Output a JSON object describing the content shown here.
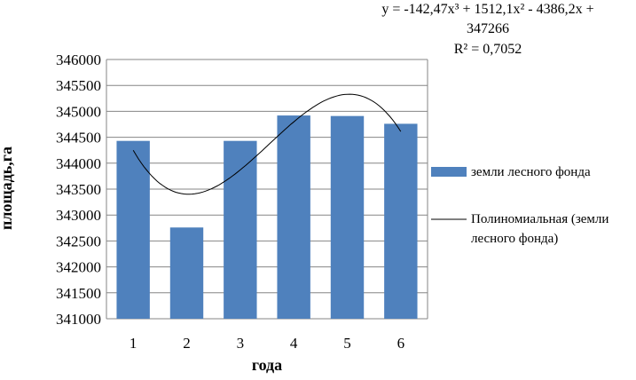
{
  "chart_data": {
    "type": "bar",
    "categories": [
      "1",
      "2",
      "3",
      "4",
      "5",
      "6"
    ],
    "series": [
      {
        "name": "земли лесного фонда",
        "values": [
          344430,
          342760,
          344430,
          344920,
          344910,
          344760
        ],
        "color": "#4f81bd"
      }
    ],
    "trendline": {
      "type": "polynomial",
      "order": 3,
      "name": "Полиномиальная (земли лесного фонда)",
      "equation_lines": [
        "y = -142,47x³ + 1512,1x² - 4386,2x +",
        "347266"
      ],
      "r2_label": "R² = 0,7052",
      "coefficients": [
        -142.47,
        1512.1,
        -4386.2,
        347266
      ],
      "color": "#000000"
    },
    "xlabel": "года",
    "ylabel": "площадь,га",
    "ylim": [
      341000,
      346000
    ],
    "yticks": [
      341000,
      341500,
      342000,
      342500,
      343000,
      343500,
      344000,
      344500,
      345000,
      345500,
      346000
    ],
    "grid": true,
    "legend_position": "right",
    "legend": {
      "bar_label": "земли лесного фонда",
      "line_label_lines": [
        "Полиномиальная (земли",
        "лесного фонда)"
      ]
    }
  }
}
